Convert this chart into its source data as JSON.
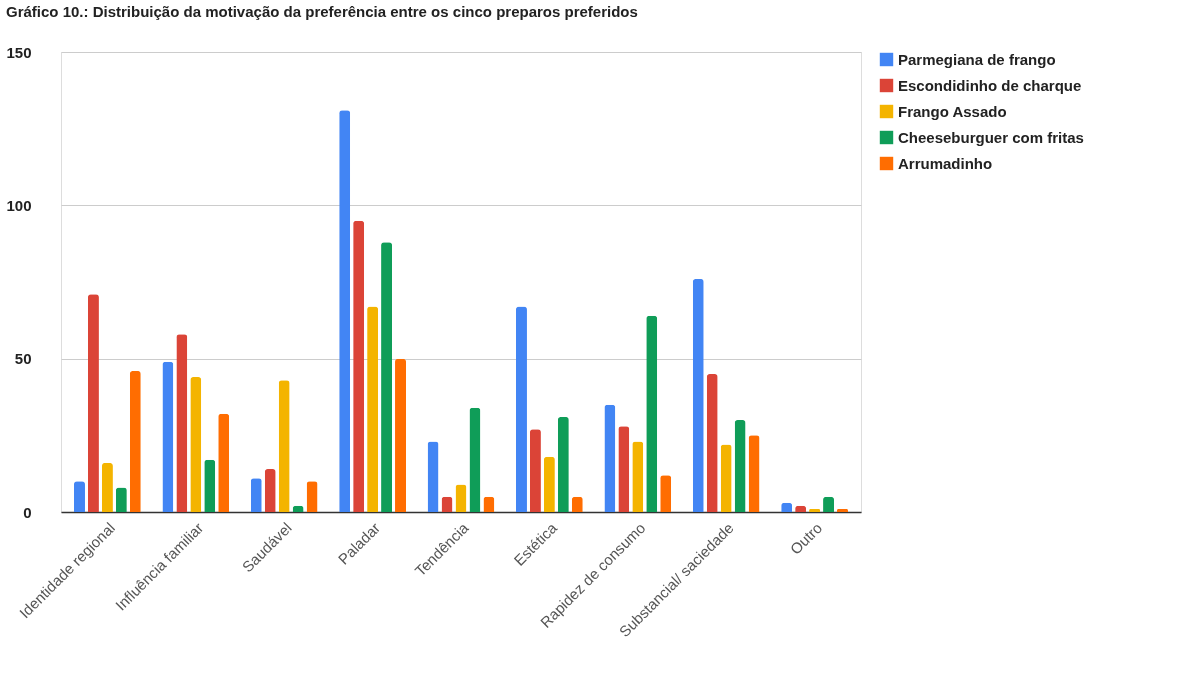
{
  "chart_data": {
    "type": "bar",
    "title": "Gráfico 10.: Distribuição da motivação da preferência entre os cinco preparos preferidos",
    "categories": [
      "Identidade regional",
      "Influência familiar",
      "Saudável",
      "Paladar",
      "Tendência",
      "Estética",
      "Rapidez de consumo",
      "Substancial/ saciedade",
      "Outro"
    ],
    "series": [
      {
        "name": "Parmegiana de frango",
        "color": "#4285f4",
        "values": [
          10,
          49,
          11,
          131,
          23,
          67,
          35,
          76,
          3
        ]
      },
      {
        "name": "Escondidinho de charque",
        "color": "#db4437",
        "values": [
          71,
          58,
          14,
          95,
          5,
          27,
          28,
          45,
          2
        ]
      },
      {
        "name": "Frango Assado",
        "color": "#f4b400",
        "values": [
          16,
          44,
          43,
          67,
          9,
          18,
          23,
          22,
          1
        ]
      },
      {
        "name": "Cheeseburguer com fritas",
        "color": "#0f9d58",
        "values": [
          8,
          17,
          2,
          88,
          34,
          31,
          64,
          30,
          5
        ]
      },
      {
        "name": "Arrumadinho",
        "color": "#ff6d01",
        "values": [
          46,
          32,
          10,
          50,
          5,
          5,
          12,
          25,
          1
        ]
      }
    ],
    "ylim": [
      0,
      150
    ],
    "yticks": [
      0,
      50,
      100,
      150
    ],
    "grid": "y",
    "legend": "top right"
  }
}
